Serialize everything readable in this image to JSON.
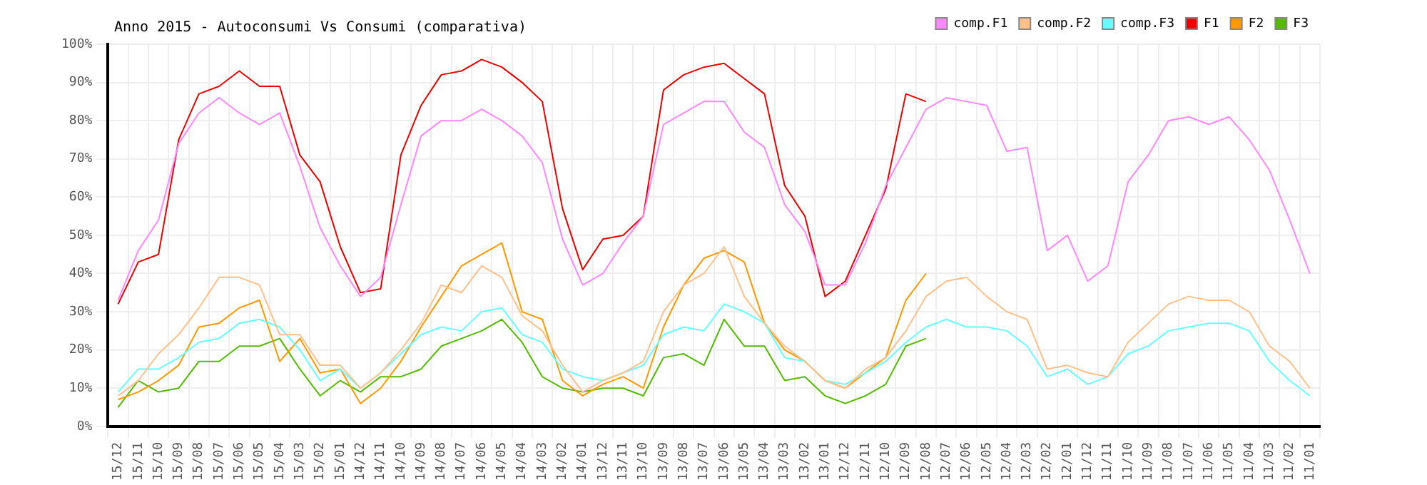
{
  "chart_data": {
    "type": "line",
    "title": "Anno 2015 - Autoconsumi Vs Consumi (comparativa)",
    "categories": [
      "15/12",
      "15/11",
      "15/10",
      "15/09",
      "15/08",
      "15/07",
      "15/06",
      "15/05",
      "15/04",
      "15/03",
      "15/02",
      "15/01",
      "14/12",
      "14/11",
      "14/10",
      "14/09",
      "14/08",
      "14/07",
      "14/06",
      "14/05",
      "14/04",
      "14/03",
      "14/02",
      "14/01",
      "13/12",
      "13/11",
      "13/10",
      "13/09",
      "13/08",
      "13/07",
      "13/06",
      "13/05",
      "13/04",
      "13/03",
      "13/02",
      "13/01",
      "12/12",
      "12/11",
      "12/10",
      "12/09",
      "12/08",
      "12/07",
      "12/06",
      "12/05",
      "12/04",
      "12/03",
      "12/02",
      "12/01",
      "11/12",
      "11/11",
      "11/10",
      "11/09",
      "11/08",
      "11/07",
      "11/06",
      "11/05",
      "11/04",
      "11/03",
      "11/02",
      "11/01"
    ],
    "series": [
      {
        "name": "comp.F1",
        "color": "#ff88ff",
        "values": [
          33,
          46,
          54,
          74,
          82,
          86,
          82,
          79,
          82,
          68,
          52,
          42,
          34,
          39,
          58,
          76,
          80,
          80,
          83,
          80,
          76,
          69,
          49,
          37,
          40,
          48,
          55,
          79,
          82,
          85,
          85,
          77,
          73,
          58,
          51,
          37,
          37,
          48,
          63,
          73,
          83,
          86,
          85,
          84,
          72,
          73,
          46,
          50,
          38,
          42,
          64,
          71,
          80,
          81,
          79,
          81,
          75,
          67,
          54,
          40
        ]
      },
      {
        "name": "comp.F2",
        "color": "#ffc08a",
        "values": [
          8,
          12,
          19,
          24,
          31,
          39,
          39,
          37,
          24,
          24,
          16,
          16,
          10,
          14,
          20,
          27,
          37,
          35,
          42,
          39,
          29,
          25,
          16,
          9,
          12,
          14,
          17,
          30,
          37,
          40,
          47,
          34,
          27,
          21,
          17,
          12,
          10,
          15,
          18,
          25,
          34,
          38,
          39,
          34,
          30,
          28,
          15,
          16,
          14,
          13,
          22,
          27,
          32,
          34,
          33,
          33,
          30,
          21,
          17,
          10
        ]
      },
      {
        "name": "comp.F3",
        "color": "#66ffff",
        "values": [
          9,
          15,
          15,
          18,
          22,
          23,
          27,
          28,
          26,
          20,
          12,
          15,
          10,
          14,
          19,
          24,
          26,
          25,
          30,
          31,
          24,
          22,
          15,
          13,
          12,
          14,
          16,
          24,
          26,
          25,
          32,
          30,
          27,
          18,
          17,
          12,
          11,
          14,
          17,
          22,
          26,
          28,
          26,
          26,
          25,
          21,
          13,
          15,
          11,
          13,
          19,
          21,
          25,
          26,
          27,
          27,
          25,
          17,
          12,
          8
        ]
      },
      {
        "name": "F1",
        "color": "#ee0000",
        "values": [
          32,
          43,
          45,
          75,
          87,
          89,
          93,
          89,
          89,
          71,
          64,
          47,
          35,
          36,
          71,
          84,
          92,
          93,
          96,
          94,
          90,
          85,
          57,
          41,
          49,
          50,
          55,
          88,
          92,
          94,
          95,
          91,
          87,
          63,
          55,
          34,
          38,
          50,
          62,
          87,
          85,
          null,
          null,
          null,
          null,
          null,
          null,
          null,
          null,
          null,
          null,
          null,
          null,
          null,
          null,
          null,
          null,
          null,
          null,
          null
        ]
      },
      {
        "name": "F2",
        "color": "#ff9900",
        "values": [
          7,
          9,
          12,
          16,
          26,
          27,
          31,
          33,
          17,
          23,
          14,
          15,
          6,
          10,
          17,
          26,
          34,
          42,
          45,
          48,
          30,
          28,
          12,
          8,
          11,
          13,
          10,
          26,
          37,
          44,
          46,
          43,
          27,
          20,
          17,
          12,
          10,
          14,
          18,
          33,
          40,
          null,
          null,
          null,
          null,
          null,
          null,
          null,
          null,
          null,
          null,
          null,
          null,
          null,
          null,
          null,
          null,
          null,
          null,
          null
        ]
      },
      {
        "name": "F3",
        "color": "#55bb00",
        "values": [
          5,
          12,
          9,
          10,
          17,
          17,
          21,
          21,
          23,
          15,
          8,
          12,
          9,
          13,
          13,
          15,
          21,
          23,
          25,
          28,
          22,
          13,
          10,
          9,
          10,
          10,
          8,
          18,
          19,
          16,
          28,
          21,
          21,
          12,
          13,
          8,
          6,
          8,
          11,
          21,
          23,
          null,
          null,
          null,
          null,
          null,
          null,
          null,
          null,
          null,
          null,
          null,
          null,
          null,
          null,
          null,
          null,
          null,
          null,
          null
        ]
      }
    ],
    "ylim": [
      0,
      100
    ],
    "yticks": [
      {
        "value": 0,
        "label": "0%"
      },
      {
        "value": 10,
        "label": "10%"
      },
      {
        "value": 20,
        "label": "20%"
      },
      {
        "value": 30,
        "label": "30%"
      },
      {
        "value": 40,
        "label": "40%"
      },
      {
        "value": 50,
        "label": "50%"
      },
      {
        "value": 60,
        "label": "60%"
      },
      {
        "value": 70,
        "label": "70%"
      },
      {
        "value": 80,
        "label": "80%"
      },
      {
        "value": 90,
        "label": "90%"
      },
      {
        "value": 100,
        "label": "100%"
      }
    ],
    "grid": true,
    "legend": "top right",
    "marker": "none",
    "line_style": "solid"
  }
}
